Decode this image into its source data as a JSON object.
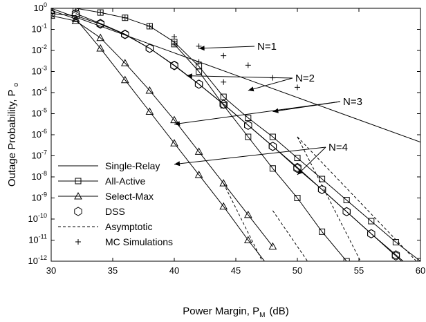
{
  "chart_data": {
    "type": "line",
    "xlabel": "Power Margin, P",
    "xlabel_sub": "M",
    "xlabel_unit": "(dB)",
    "ylabel": "Outage Probability, P",
    "ylabel_sub": "o",
    "xlim": [
      30,
      60
    ],
    "ylim_log10": [
      -12,
      0
    ],
    "yscale": "log",
    "x_ticks": [
      "30",
      "35",
      "40",
      "45",
      "50",
      "55",
      "60"
    ],
    "y_ticks": [
      {
        "base": "10",
        "exp": "0"
      },
      {
        "base": "10",
        "exp": "-1"
      },
      {
        "base": "10",
        "exp": "-2"
      },
      {
        "base": "10",
        "exp": "-3"
      },
      {
        "base": "10",
        "exp": "-4"
      },
      {
        "base": "10",
        "exp": "-5"
      },
      {
        "base": "10",
        "exp": "-6"
      },
      {
        "base": "10",
        "exp": "-7"
      },
      {
        "base": "10",
        "exp": "-8"
      },
      {
        "base": "10",
        "exp": "-9"
      },
      {
        "base": "10",
        "exp": "-10"
      },
      {
        "base": "10",
        "exp": "-11"
      },
      {
        "base": "10",
        "exp": "-12"
      }
    ],
    "legend": {
      "position": "bottom-left",
      "entries": [
        {
          "label": "Single-Relay",
          "style": "solid"
        },
        {
          "label": "All-Active",
          "style": "square"
        },
        {
          "label": "Select-Max",
          "style": "triangle"
        },
        {
          "label": "DSS",
          "style": "hexagon"
        },
        {
          "label": "Asymptotic",
          "style": "dashed"
        },
        {
          "label": "MC Simulations",
          "style": "plus"
        }
      ]
    },
    "annotations": [
      {
        "text": "N=1",
        "targets": [
          [
            42,
            -1.9
          ]
        ]
      },
      {
        "text": "N=2",
        "targets": [
          [
            46,
            -3.9
          ],
          [
            41,
            -3.2
          ]
        ]
      },
      {
        "text": "N=3",
        "targets": [
          [
            48,
            -4.9
          ],
          [
            40,
            -5.5
          ]
        ]
      },
      {
        "text": "N=4",
        "targets": [
          [
            50,
            -7.9
          ],
          [
            40,
            -7.4
          ]
        ]
      }
    ],
    "series": [
      {
        "group": "single",
        "marker": "none",
        "x": [
          30,
          60
        ],
        "log10y": [
          0.0,
          -6.35
        ]
      },
      {
        "group": "aa",
        "marker": "square",
        "x": [
          32,
          34,
          36,
          38,
          40,
          42,
          44,
          46,
          48,
          50,
          52,
          54,
          56,
          58,
          60
        ],
        "log10y": [
          0.0,
          -0.2,
          -0.45,
          -0.85,
          -1.6,
          -2.75,
          -4.2,
          -5.2,
          -6.1,
          -7.1,
          -8.1,
          -9.1,
          -10.1,
          -11.1,
          -12.0
        ]
      },
      {
        "group": "aa",
        "marker": "square",
        "x": [
          40,
          42,
          44,
          46,
          48,
          50,
          52,
          54,
          56,
          58
        ],
        "log10y": [
          -1.7,
          -3.0,
          -4.6,
          -6.1,
          -7.6,
          -9.0,
          -10.6,
          -12.0,
          -13.5,
          -15.0
        ]
      },
      {
        "group": "sm",
        "marker": "triangle",
        "x": [
          30,
          32,
          34,
          36,
          38,
          40,
          42,
          44,
          46,
          48
        ],
        "log10y": [
          -0.35,
          -0.6,
          -1.4,
          -2.6,
          -3.9,
          -5.3,
          -6.8,
          -8.3,
          -9.8,
          -11.3
        ]
      },
      {
        "group": "sm",
        "marker": "triangle",
        "x": [
          30,
          32,
          34,
          36,
          38,
          40,
          42,
          44,
          46,
          48,
          50
        ],
        "log10y": [
          -0.1,
          -0.5,
          -1.9,
          -3.4,
          -4.9,
          -6.4,
          -7.9,
          -9.4,
          -11.0,
          -12.5,
          -14.0
        ]
      },
      {
        "group": "dss",
        "marker": "hexagon",
        "x": [
          30,
          32,
          34,
          36,
          38,
          40,
          42,
          44,
          46,
          48,
          50,
          52,
          54,
          56,
          58,
          60
        ],
        "log10y": [
          -0.25,
          -0.35,
          -0.75,
          -1.25,
          -1.9,
          -2.7,
          -3.6,
          -4.55,
          -5.55,
          -6.55,
          -7.6,
          -8.6,
          -9.65,
          -10.7,
          -11.7,
          -12.7
        ]
      },
      {
        "group": "dss",
        "marker": "hexagon",
        "x": [
          32,
          34,
          36,
          38,
          40,
          42,
          44,
          46,
          48,
          50,
          52,
          54,
          56,
          58,
          60
        ],
        "log10y": [
          -0.25,
          -0.72,
          -1.23,
          -1.9,
          -2.72,
          -3.6,
          -4.55,
          -5.55,
          -6.55,
          -7.55,
          -8.6,
          -9.65,
          -10.7,
          -11.75,
          -12.8
        ]
      },
      {
        "group": "asym",
        "marker": "none",
        "dashed": true,
        "x": [
          44,
          48
        ],
        "log10y": [
          -8.3,
          -13.0
        ]
      },
      {
        "group": "asym",
        "marker": "none",
        "dashed": true,
        "x": [
          48,
          52
        ],
        "log10y": [
          -9.6,
          -13.0
        ]
      },
      {
        "group": "asym",
        "marker": "none",
        "dashed": true,
        "x": [
          50,
          56
        ],
        "log10y": [
          -6.1,
          -13.0
        ]
      },
      {
        "group": "asym",
        "marker": "none",
        "dashed": true,
        "x": [
          50,
          60
        ],
        "log10y": [
          -6.1,
          -12.2
        ]
      },
      {
        "group": "mc",
        "marker": "plus",
        "x": [
          30,
          32,
          34,
          36,
          38,
          40,
          42,
          44
        ],
        "log10y": [
          0.0,
          0.0,
          -0.2,
          -0.45,
          -0.85,
          -1.65,
          -2.55,
          -3.5
        ]
      },
      {
        "group": "mc",
        "marker": "plus",
        "x": [
          40,
          42,
          44,
          46,
          48,
          50
        ],
        "log10y": [
          -1.35,
          -1.8,
          -2.25,
          -2.7,
          -3.3,
          -3.75
        ]
      }
    ]
  }
}
